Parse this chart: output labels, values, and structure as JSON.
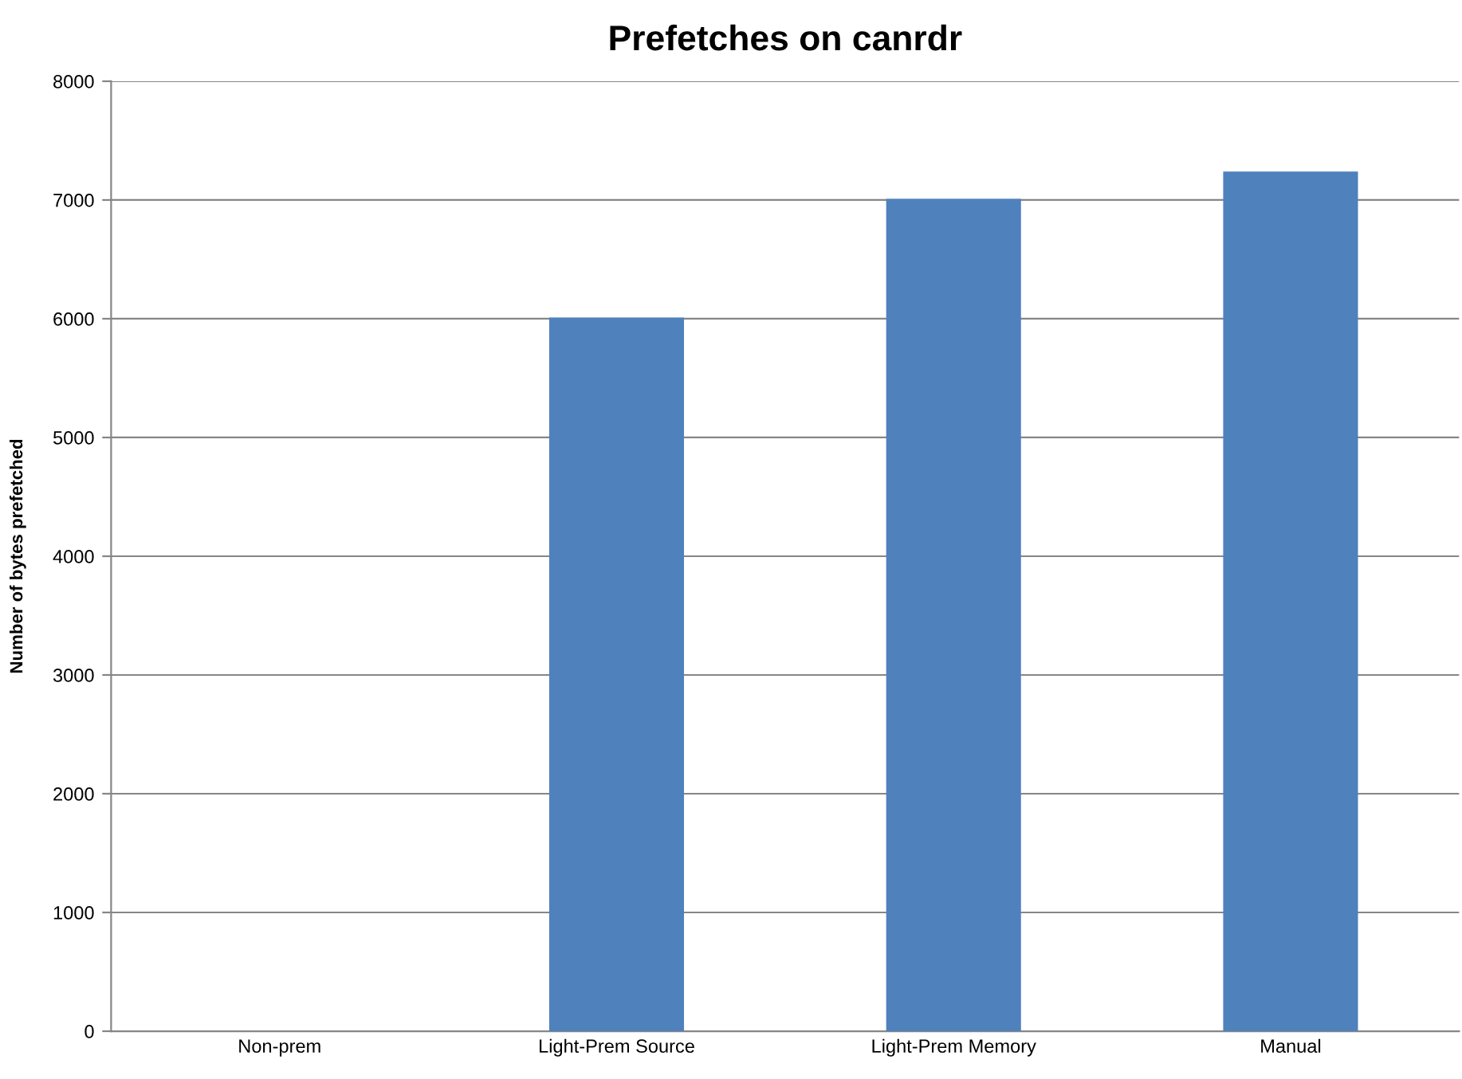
{
  "chart_data": {
    "type": "bar",
    "title": "Prefetches on canrdr",
    "ylabel": "Number of bytes prefetched",
    "categories": [
      "Non-prem",
      "Light-Prem Source",
      "Light-Prem Memory",
      "Manual"
    ],
    "values": [
      0,
      6010,
      7010,
      7240
    ],
    "color": "#4f81bd",
    "ylim": [
      0,
      8000
    ],
    "yticks": [
      0,
      1000,
      2000,
      3000,
      4000,
      5000,
      6000,
      7000,
      8000
    ],
    "grid": "y",
    "legend": false
  }
}
